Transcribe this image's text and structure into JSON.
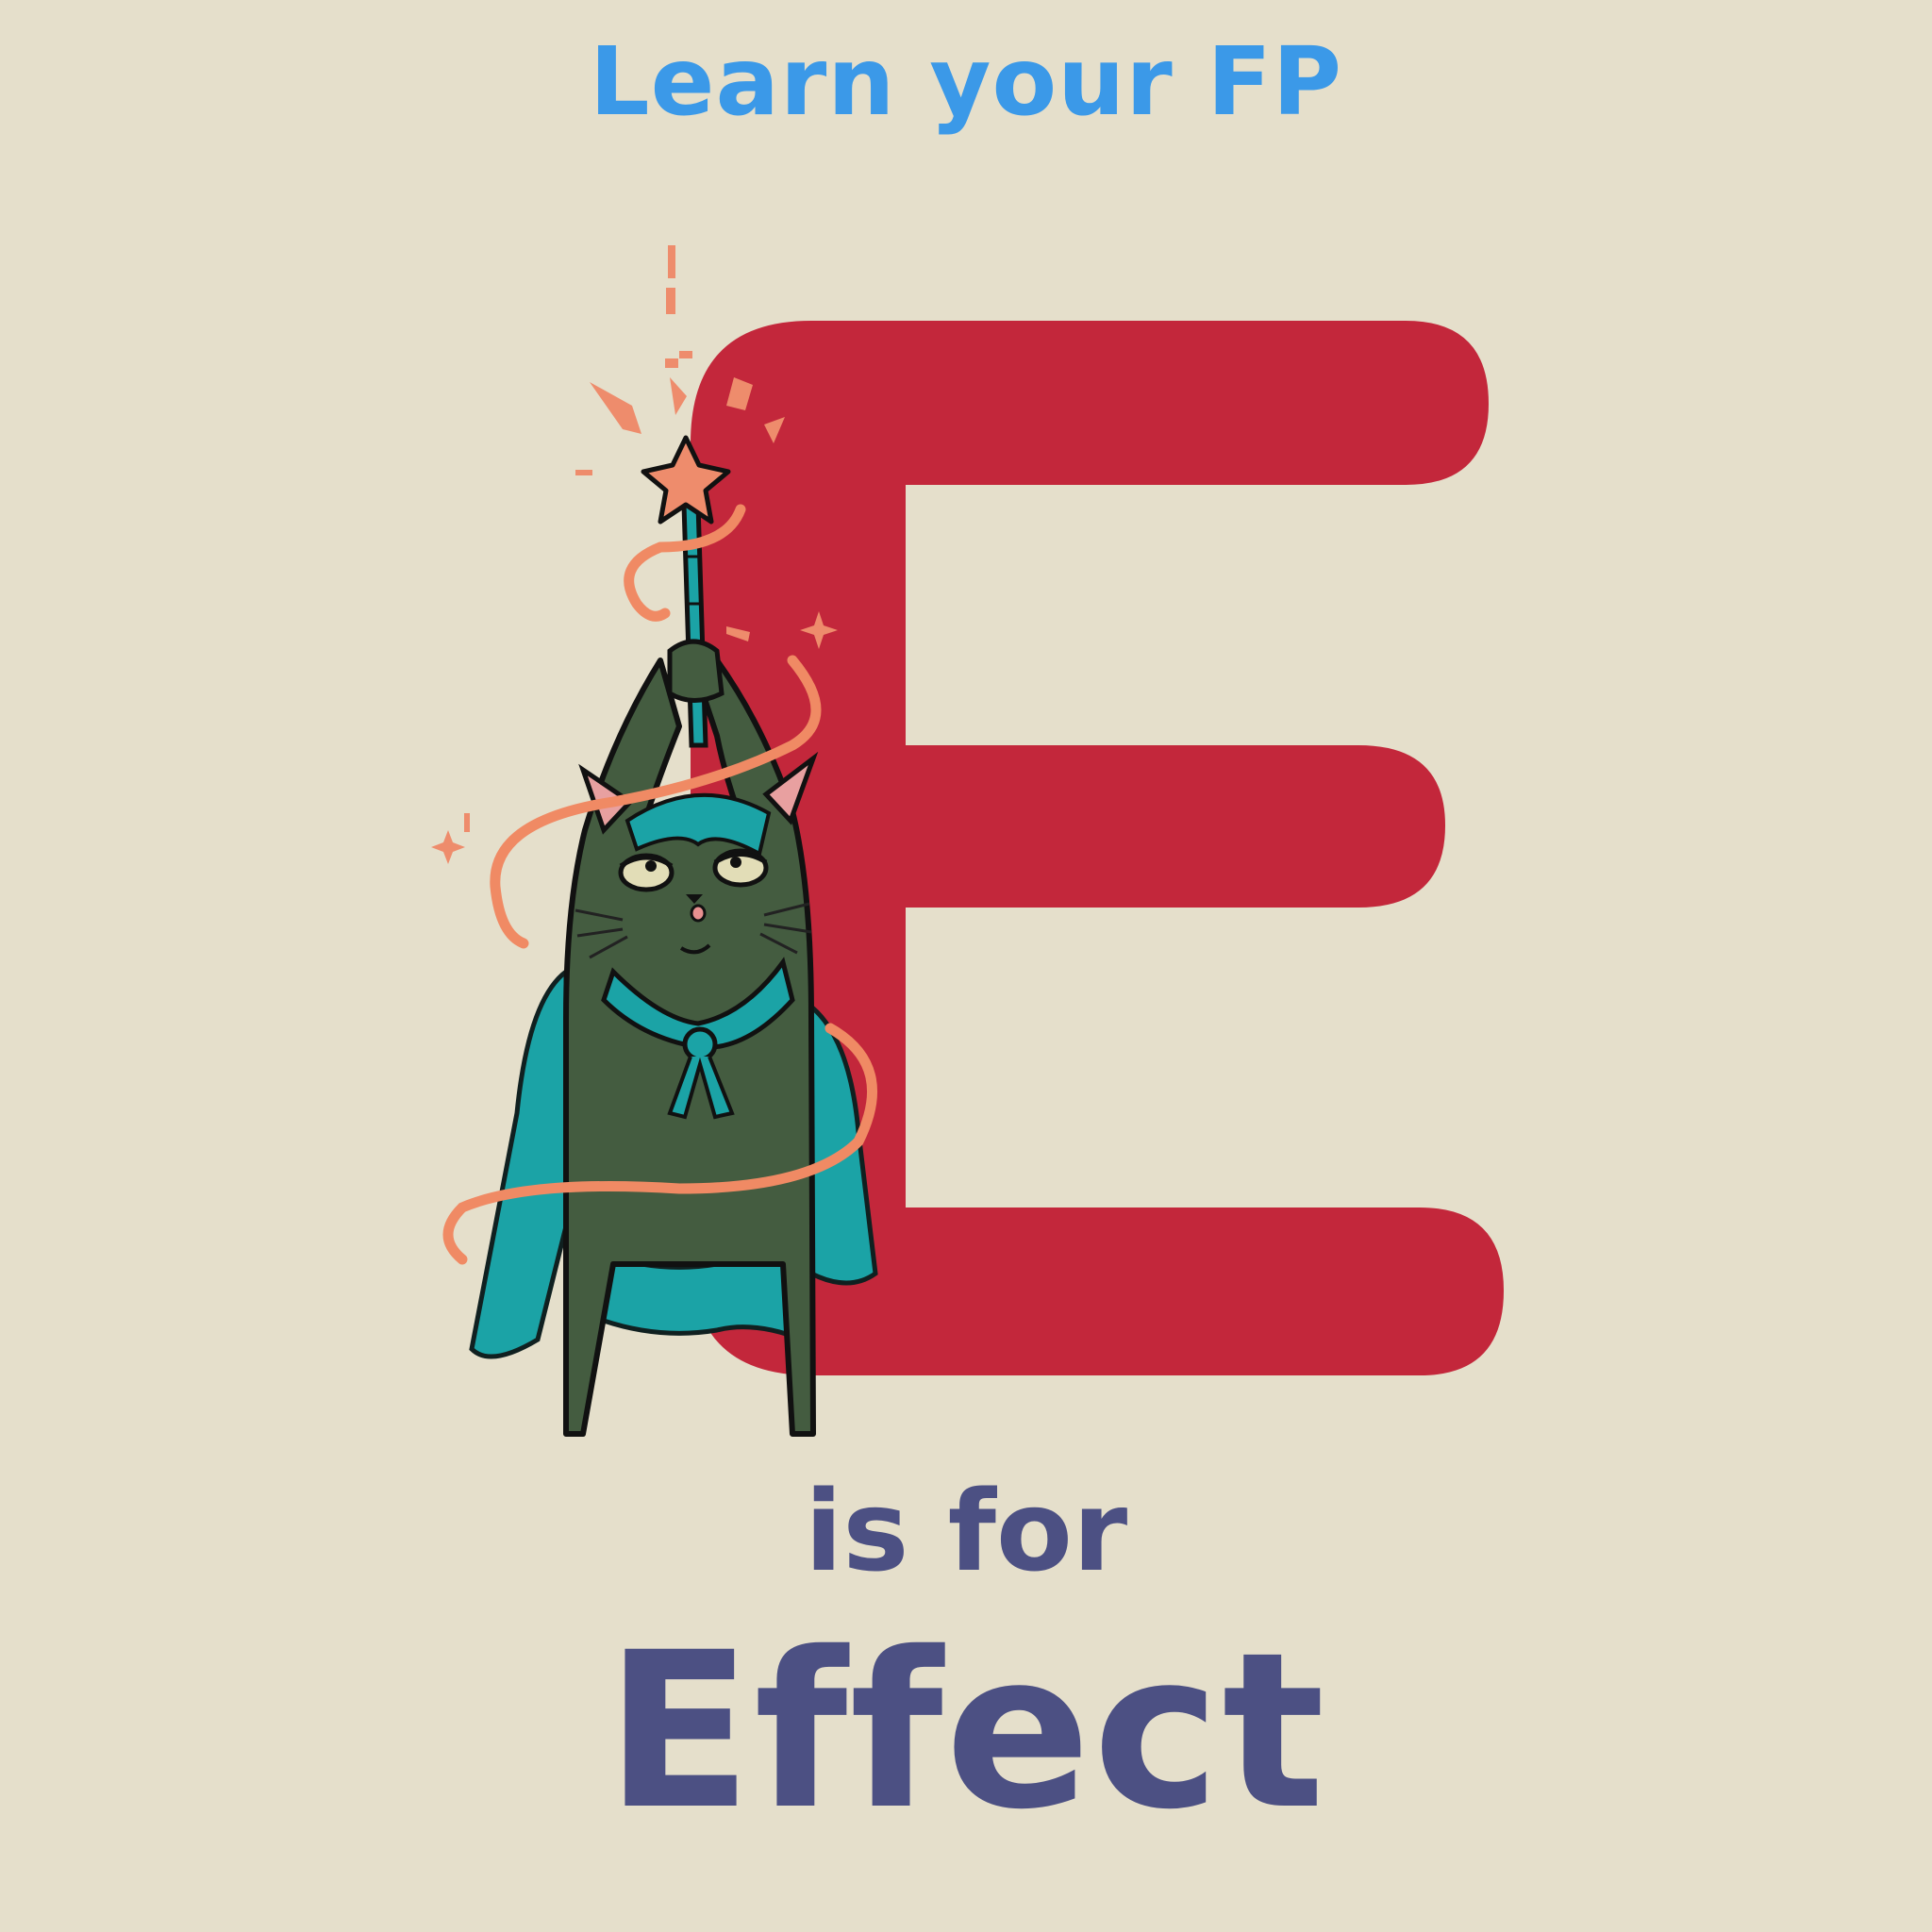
{
  "header": {
    "text": "Learn your FP"
  },
  "letter": {
    "char": "E",
    "color": "#c3273b"
  },
  "subtitle": {
    "text": "is for"
  },
  "word": {
    "text": "Effect"
  },
  "colors": {
    "background": "#e5dfcb",
    "header_text": "#3b99e8",
    "body_text": "#4c5083",
    "cat_body": "#445c40",
    "cape": "#1ba3a6",
    "ribbon": "#f08a64",
    "star": "#ee8c6c"
  },
  "illustration": {
    "subject": "cat-wizard-icon"
  }
}
